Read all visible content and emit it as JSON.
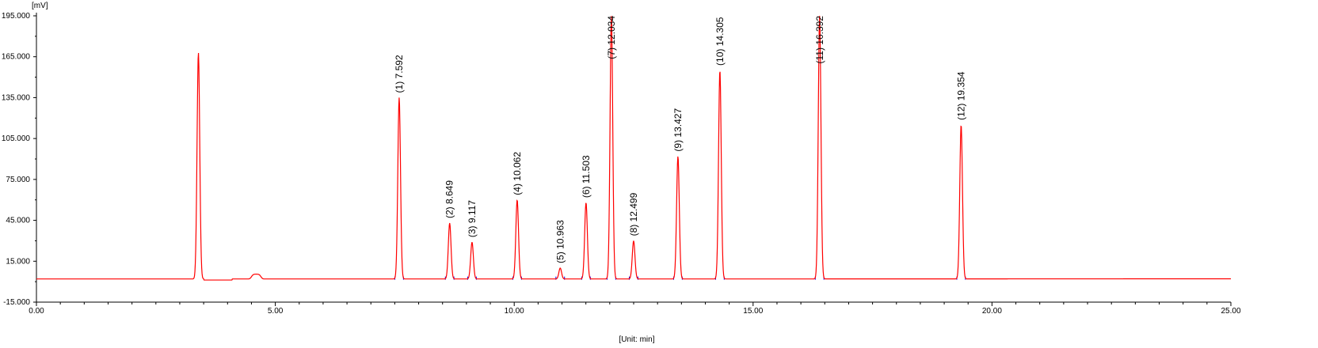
{
  "chart_data": {
    "type": "line",
    "title": "",
    "ylabel": "[mV]",
    "xlabel": "[Unit: min]",
    "xlim": [
      0,
      25
    ],
    "ylim": [
      -15,
      195
    ],
    "grid": false,
    "legend": "none",
    "xticks": [
      "0.00",
      "5.00",
      "10.00",
      "15.00",
      "20.00",
      "25.00"
    ],
    "yticks": [
      "-15.000",
      "15.000",
      "45.000",
      "75.000",
      "105.000",
      "135.000",
      "165.000",
      "195.000"
    ],
    "baseline": 2.0,
    "series_color": "#ff0000",
    "marker_color": "#0000ff",
    "peaks": [
      {
        "t": 3.39,
        "h": 168
      },
      {
        "t": 7.592,
        "h": 135,
        "label": "(1) 7.592"
      },
      {
        "t": 8.649,
        "h": 43,
        "label": "(2) 8.649"
      },
      {
        "t": 9.117,
        "h": 29,
        "label": "(3) 9.117"
      },
      {
        "t": 10.062,
        "h": 60,
        "label": "(4) 10.062"
      },
      {
        "t": 10.963,
        "h": 10,
        "label": "(5) 10.963"
      },
      {
        "t": 11.503,
        "h": 58,
        "label": "(6) 11.503"
      },
      {
        "t": 12.034,
        "h": 195,
        "label": "(7) 12.034"
      },
      {
        "t": 12.499,
        "h": 30,
        "label": "(8) 12.499"
      },
      {
        "t": 13.427,
        "h": 92,
        "label": "(9) 13.427"
      },
      {
        "t": 14.305,
        "h": 155,
        "label": "(10) 14.305"
      },
      {
        "t": 16.392,
        "h": 195,
        "label": "(11) 16.392"
      },
      {
        "t": 19.354,
        "h": 115,
        "label": "(12) 19.354"
      }
    ]
  }
}
